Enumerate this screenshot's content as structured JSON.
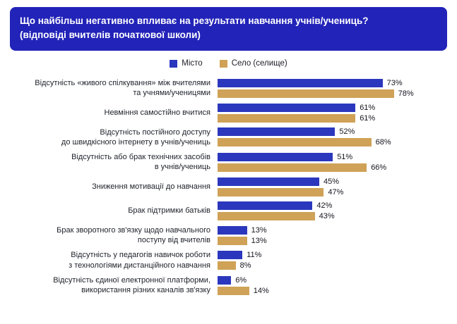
{
  "title": {
    "line1": "Що найбільш негативно впливає на результати навчання учнів/учениць?",
    "line2": "(відповіді вчителів початкової школи)"
  },
  "legend": [
    {
      "label": "Місто",
      "color": "#2b37bd"
    },
    {
      "label": "Село (селище)",
      "color": "#cfa257"
    }
  ],
  "chart_data": {
    "type": "bar",
    "orientation": "horizontal",
    "title": "Що найбільш негативно впливає на результати навчання учнів/учениць? (відповіді вчителів початкової школи)",
    "value_suffix": "%",
    "xlim": [
      0,
      100
    ],
    "legend_position": "top",
    "grid": false,
    "categories": [
      "Відсутність «живого спілкування» між вчителями\nта учнями/ученицями",
      "Невміння самостійно вчитися",
      "Відсутність постійного доступу\nдо швидкісного інтернету в учнів/учениць",
      "Відсутність або брак технічних засобів\nв учнів/учениць",
      "Зниження мотивації до навчання",
      "Брак підтримки батьків",
      "Брак зворотного зв'язку щодо навчального\nпоступу від вчителів",
      "Відсутність у педагогів навичок роботи\nз технологіями дистанційного навчання",
      "Відсутність єдиної електронної платформи,\nвикористання різних каналів зв'язку"
    ],
    "series": [
      {
        "name": "Місто",
        "color": "#2b37bd",
        "values": [
          73,
          61,
          52,
          51,
          45,
          42,
          13,
          11,
          6
        ]
      },
      {
        "name": "Село (селище)",
        "color": "#cfa257",
        "values": [
          78,
          61,
          68,
          66,
          47,
          43,
          13,
          8,
          14
        ]
      }
    ]
  }
}
